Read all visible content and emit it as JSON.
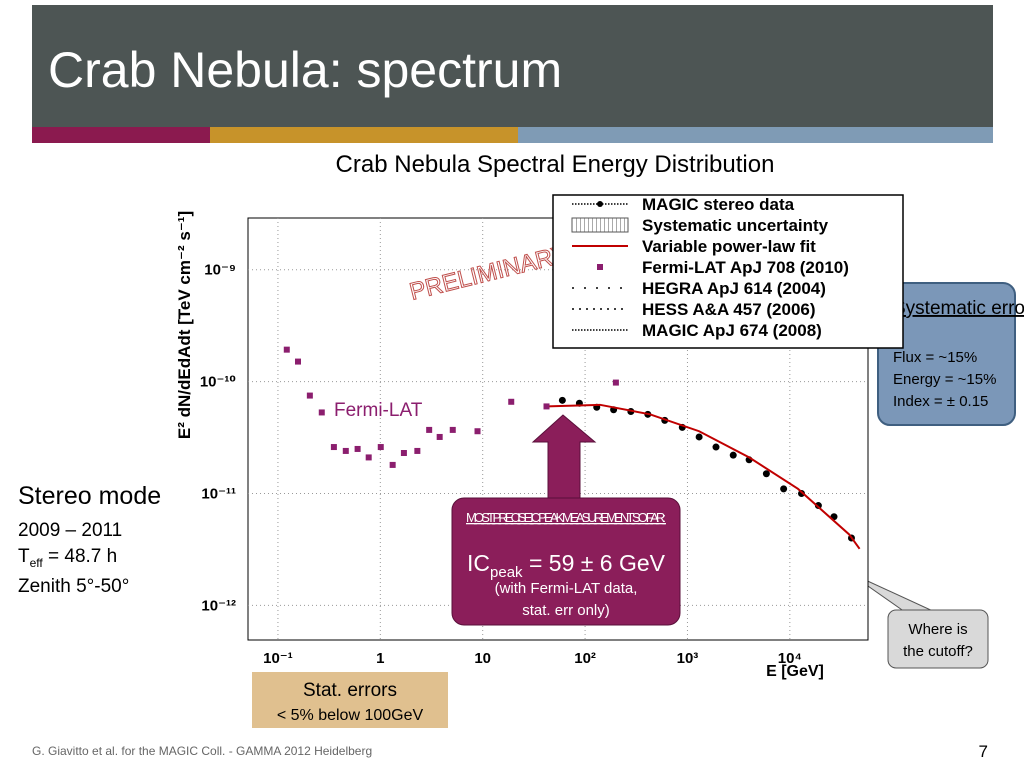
{
  "slide_title": "Crab Nebula: spectrum",
  "left_box": {
    "heading": "Stereo mode",
    "period": "2009 – 2011",
    "teff": {
      "main": "T",
      "sub": "eff",
      "rest": " = 48.7 h"
    },
    "zenith": "Zenith 5°-50°"
  },
  "peak_box": {
    "heading": "MOST PRECISE IC PEAK MEASUREMENT SO FAR:",
    "value": {
      "main": "IC",
      "sub": "peak",
      "rest": " = 59 ± 6 GeV"
    },
    "note_line1": "(with Fermi-LAT data,",
    "note_line2": "stat. err only)"
  },
  "systematic_box": {
    "heading": "Systematic errors:",
    "flux": "Flux = ~15%",
    "energy": "Energy  = ~15%",
    "index": "Index = ± 0.15"
  },
  "cutoff_callout": {
    "line1": "Where is",
    "line2": "the cutoff?"
  },
  "stat_box": {
    "line1": "Stat. errors",
    "line2": "< 5% below 100GeV"
  },
  "footer": "G. Giavitto et al. for the MAGIC Coll. - GAMMA 2012 Heidelberg",
  "page_number": "7",
  "chart_data": {
    "type": "scatter",
    "title": "Crab Nebula Spectral Energy Distribution",
    "x_label": "E [GeV]",
    "y_label": "E² dN/dEdAdt [TeV cm⁻² s⁻¹]",
    "annotations": [
      "PRELIMINARY",
      "Fermi-LAT"
    ],
    "log_x": true,
    "log_y": true,
    "grid": true,
    "xlim": [
      0.051,
      58000
    ],
    "ylim": [
      4.9e-13,
      2.9e-09
    ],
    "xticks": [
      {
        "value": 0.1,
        "label": "10⁻¹"
      },
      1,
      10,
      {
        "value": 100,
        "label": "10²"
      },
      {
        "value": 1000,
        "label": "10³"
      },
      {
        "value": 10000,
        "label": "10⁴"
      }
    ],
    "yticks": [
      {
        "value": 1e-12,
        "label": "10⁻¹²"
      },
      {
        "value": 1e-11,
        "label": "10⁻¹¹"
      },
      {
        "value": 1e-10,
        "label": "10⁻¹⁰"
      },
      {
        "value": 1e-09,
        "label": "10⁻⁹"
      }
    ],
    "series": [
      {
        "name": "MAGIC stereo data",
        "color": "#000000",
        "marker": "circle",
        "x": [
          60,
          88,
          130,
          190,
          280,
          410,
          600,
          890,
          1300,
          1900,
          2800,
          4000,
          5900,
          8700,
          13000,
          19000,
          27000,
          40000
        ],
        "values": [
          6.8e-11,
          6.4e-11,
          5.9e-11,
          5.6e-11,
          5.4e-11,
          5.1e-11,
          4.5e-11,
          3.9e-11,
          3.2e-11,
          2.6e-11,
          2.2e-11,
          2e-11,
          1.5e-11,
          1.1e-11,
          1e-11,
          7.8e-12,
          6.2e-12,
          4e-12
        ]
      },
      {
        "name": "Variable power-law fit",
        "color": "#c00000",
        "marker": "line",
        "x": [
          43,
          140,
          430,
          1300,
          4000,
          12000,
          38000,
          48000
        ],
        "values": [
          6e-11,
          6.2e-11,
          5.1e-11,
          3.6e-11,
          2.1e-11,
          1.1e-11,
          4.3e-12,
          3.2e-12
        ]
      },
      {
        "name": "Fermi-LAT ApJ 708 (2010)",
        "color": "#8b1e6e",
        "marker": "square",
        "x": [
          0.122,
          0.157,
          0.205,
          0.268,
          0.352,
          0.46,
          0.6,
          0.77,
          1.01,
          1.32,
          1.7,
          2.3,
          3.0,
          3.8,
          5.1,
          8.9,
          19,
          42,
          200
        ],
        "values": [
          1.93e-10,
          1.51e-10,
          7.5e-11,
          5.3e-11,
          2.6e-11,
          2.4e-11,
          2.5e-11,
          2.1e-11,
          2.6e-11,
          1.8e-11,
          2.3e-11,
          2.4e-11,
          3.7e-11,
          3.2e-11,
          3.7e-11,
          3.6e-11,
          6.6e-11,
          6e-11,
          9.8e-11
        ]
      }
    ],
    "legend_extra": [
      "Systematic uncertainty",
      "HEGRA ApJ 614 (2004)",
      "HESS  A&A 457 (2006)",
      "MAGIC ApJ 674 (2008)"
    ]
  }
}
